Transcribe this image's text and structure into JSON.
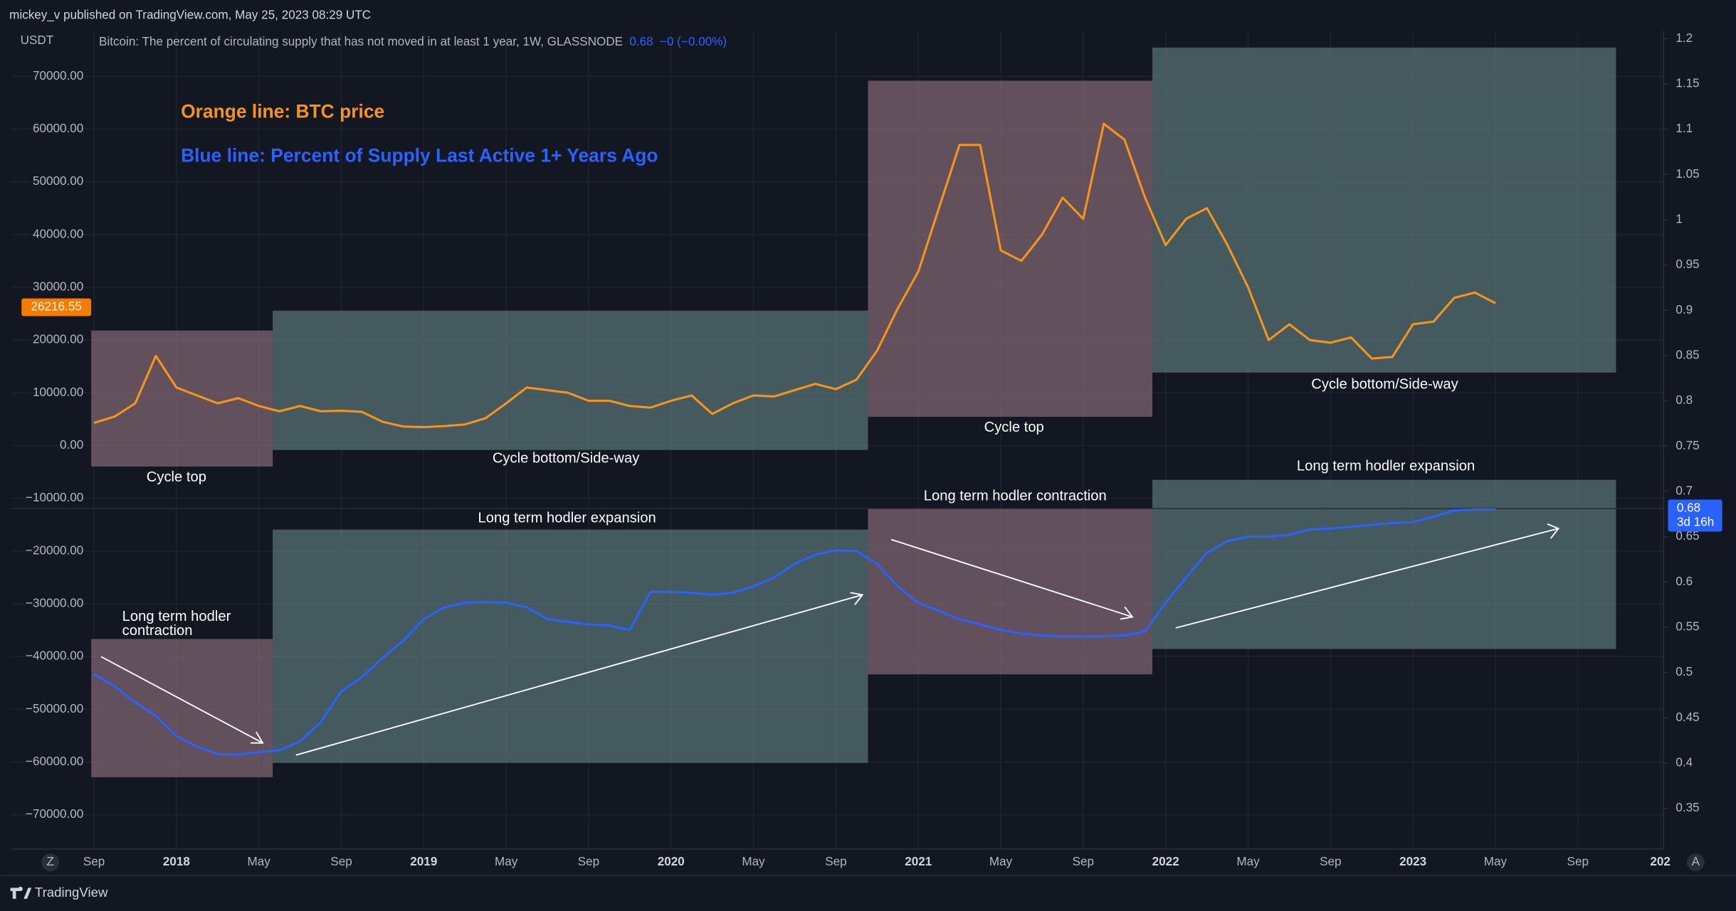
{
  "header": "mickey_v published on TradingView.com, May 25, 2023 08:29 UTC",
  "footer": "TradingView",
  "buttons": [
    "Z",
    "A"
  ],
  "chart_data": {
    "type": "line",
    "axis_unit": "USDT",
    "legend": {
      "text": "Bitcoin: The percent of circulating supply that has not moved in at least 1 year, 1W, GLASSNODE",
      "value": 0.68,
      "change": "−0 (−0.00%)",
      "countdown": "3d 16h"
    },
    "last_price": 26216.55,
    "annotations": {
      "orange": "Orange line: BTC price",
      "blue": "Blue line: Percent of Supply Last Active 1+ Years Ago",
      "boxes": [
        "Cycle top",
        "Cycle bottom/Side-way",
        "Cycle top",
        "Cycle bottom/Side-way"
      ],
      "hodl_first": [
        "Long term hodler",
        "contraction"
      ],
      "hodl": [
        "Long term hodler expansion",
        "Long term hodler contraction",
        "Long term hodler expansion"
      ]
    },
    "x": [
      "2017-09",
      "2017-10",
      "2017-11",
      "2017-12",
      "2018-01",
      "2018-02",
      "2018-03",
      "2018-04",
      "2018-05",
      "2018-06",
      "2018-07",
      "2018-08",
      "2018-09",
      "2018-10",
      "2018-11",
      "2018-12",
      "2019-01",
      "2019-02",
      "2019-03",
      "2019-04",
      "2019-05",
      "2019-06",
      "2019-07",
      "2019-08",
      "2019-09",
      "2019-10",
      "2019-11",
      "2019-12",
      "2020-01",
      "2020-02",
      "2020-03",
      "2020-04",
      "2020-05",
      "2020-06",
      "2020-07",
      "2020-08",
      "2020-09",
      "2020-10",
      "2020-11",
      "2020-12",
      "2021-01",
      "2021-02",
      "2021-03",
      "2021-04",
      "2021-05",
      "2021-06",
      "2021-07",
      "2021-08",
      "2021-09",
      "2021-10",
      "2021-11",
      "2021-12",
      "2022-01",
      "2022-02",
      "2022-03",
      "2022-04",
      "2022-05",
      "2022-06",
      "2022-07",
      "2022-08",
      "2022-09",
      "2022-10",
      "2022-11",
      "2022-12",
      "2023-01",
      "2023-02",
      "2023-03",
      "2023-04",
      "2023-05"
    ],
    "series": [
      {
        "color": "#f7931a",
        "axis": "y",
        "values": [
          4300,
          5500,
          8000,
          17000,
          11000,
          9500,
          8000,
          9000,
          7500,
          6500,
          7500,
          6500,
          6600,
          6400,
          4500,
          3600,
          3500,
          3700,
          4000,
          5200,
          8000,
          11000,
          10500,
          10000,
          8500,
          8500,
          7500,
          7200,
          8500,
          9500,
          6000,
          8000,
          9500,
          9300,
          10500,
          11700,
          10700,
          12500,
          18000,
          26000,
          33000,
          45000,
          57000,
          57000,
          37000,
          35000,
          40000,
          47000,
          43000,
          61000,
          58000,
          47000,
          38000,
          43000,
          45000,
          38000,
          30000,
          20000,
          23000,
          20000,
          19500,
          20500,
          16500,
          16800,
          23000,
          23500,
          28000,
          29000,
          27000
        ]
      },
      {
        "color": "#2962ff",
        "axis": "y2",
        "values": [
          0.498,
          0.485,
          0.467,
          0.452,
          0.43,
          0.418,
          0.41,
          0.409,
          0.412,
          0.414,
          0.424,
          0.445,
          0.479,
          0.495,
          0.516,
          0.535,
          0.559,
          0.572,
          0.577,
          0.578,
          0.577,
          0.572,
          0.559,
          0.556,
          0.553,
          0.552,
          0.547,
          0.589,
          0.589,
          0.588,
          0.586,
          0.588,
          0.595,
          0.605,
          0.62,
          0.63,
          0.635,
          0.634,
          0.62,
          0.595,
          0.577,
          0.568,
          0.559,
          0.553,
          0.547,
          0.543,
          0.541,
          0.54,
          0.54,
          0.54,
          0.541,
          0.545,
          0.577,
          0.605,
          0.632,
          0.645,
          0.65,
          0.65,
          0.652,
          0.658,
          0.659,
          0.661,
          0.663,
          0.665,
          0.666,
          0.672,
          0.679,
          0.68,
          0.68
        ]
      }
    ],
    "xlim": [
      "2017-05",
      "2024-01"
    ],
    "xticks": [
      {
        "value": "2017-09",
        "label": "Sep"
      },
      {
        "value": "2018-01",
        "label": "2018"
      },
      {
        "value": "2018-05",
        "label": "May"
      },
      {
        "value": "2018-09",
        "label": "Sep"
      },
      {
        "value": "2019-01",
        "label": "2019"
      },
      {
        "value": "2019-05",
        "label": "May"
      },
      {
        "value": "2019-09",
        "label": "Sep"
      },
      {
        "value": "2020-01",
        "label": "2020"
      },
      {
        "value": "2020-05",
        "label": "May"
      },
      {
        "value": "2020-09",
        "label": "Sep"
      },
      {
        "value": "2021-01",
        "label": "2021"
      },
      {
        "value": "2021-05",
        "label": "May"
      },
      {
        "value": "2021-09",
        "label": "Sep"
      },
      {
        "value": "2022-01",
        "label": "2022"
      },
      {
        "value": "2022-05",
        "label": "May"
      },
      {
        "value": "2022-09",
        "label": "Sep"
      },
      {
        "value": "2023-01",
        "label": "2023"
      },
      {
        "value": "2023-05",
        "label": "May"
      },
      {
        "value": "2023-09",
        "label": "Sep"
      },
      {
        "value": "2024-01",
        "label": "202"
      }
    ],
    "ylim": [
      -76500,
      78600
    ],
    "yticks": [
      {
        "value": 70000,
        "label": "70000.00"
      },
      {
        "value": 60000,
        "label": "60000.00"
      },
      {
        "value": 50000,
        "label": "50000.00"
      },
      {
        "value": 40000,
        "label": "40000.00"
      },
      {
        "value": 30000,
        "label": "30000.00"
      },
      {
        "value": 20000,
        "label": "20000.00"
      },
      {
        "value": 10000,
        "label": "10000.00"
      },
      {
        "value": 0,
        "label": "0.00"
      },
      {
        "value": -10000,
        "label": "−10000.00"
      },
      {
        "value": -20000,
        "label": "−20000.00"
      },
      {
        "value": -30000,
        "label": "−30000.00"
      },
      {
        "value": -40000,
        "label": "−40000.00"
      },
      {
        "value": -50000,
        "label": "−50000.00"
      },
      {
        "value": -60000,
        "label": "−60000.00"
      },
      {
        "value": -70000,
        "label": "−70000.00"
      }
    ],
    "y2lim": [
      0.305,
      1.2085
    ],
    "y2ticks": [
      1.2,
      1.15,
      1.1,
      1.05,
      1,
      0.95,
      0.9,
      0.85,
      0.8,
      0.75,
      0.7,
      0.65,
      0.6,
      0.55,
      0.5,
      0.45,
      0.4,
      0.35
    ],
    "grid": true
  }
}
